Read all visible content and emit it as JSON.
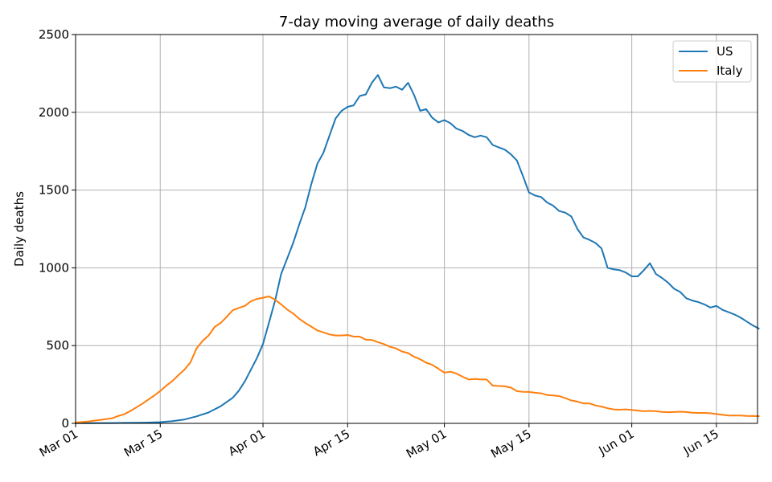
{
  "chart_data": {
    "type": "line",
    "title": "7-day moving average of daily deaths",
    "xlabel": "",
    "ylabel": "Daily deaths",
    "xlim": [
      "2020-03-01",
      "2020-06-20"
    ],
    "ylim": [
      0,
      2500
    ],
    "grid": true,
    "legend_position": "top-right",
    "x_ticks": [
      {
        "date": "2020-03-01",
        "label": "Mar 01"
      },
      {
        "date": "2020-03-15",
        "label": "Mar 15"
      },
      {
        "date": "2020-04-01",
        "label": "Apr 01"
      },
      {
        "date": "2020-04-15",
        "label": "Apr 15"
      },
      {
        "date": "2020-05-01",
        "label": "May 01"
      },
      {
        "date": "2020-05-15",
        "label": "May 15"
      },
      {
        "date": "2020-06-01",
        "label": "Jun 01"
      },
      {
        "date": "2020-06-15",
        "label": "Jun 15"
      }
    ],
    "y_ticks": [
      0,
      500,
      1000,
      1500,
      2000,
      2500
    ],
    "series": [
      {
        "name": "US",
        "color": "#1f77b4",
        "points": [
          [
            "2020-03-01",
            1
          ],
          [
            "2020-03-03",
            1
          ],
          [
            "2020-03-05",
            2
          ],
          [
            "2020-03-07",
            2
          ],
          [
            "2020-03-09",
            3
          ],
          [
            "2020-03-11",
            4
          ],
          [
            "2020-03-13",
            5
          ],
          [
            "2020-03-15",
            8
          ],
          [
            "2020-03-17",
            14
          ],
          [
            "2020-03-19",
            25
          ],
          [
            "2020-03-21",
            45
          ],
          [
            "2020-03-23",
            70
          ],
          [
            "2020-03-25",
            110
          ],
          [
            "2020-03-27",
            165
          ],
          [
            "2020-03-28",
            210
          ],
          [
            "2020-03-29",
            270
          ],
          [
            "2020-03-30",
            345
          ],
          [
            "2020-03-31",
            420
          ],
          [
            "2020-04-01",
            510
          ],
          [
            "2020-04-02",
            650
          ],
          [
            "2020-04-03",
            790
          ],
          [
            "2020-04-04",
            960
          ],
          [
            "2020-04-05",
            1060
          ],
          [
            "2020-04-06",
            1160
          ],
          [
            "2020-04-07",
            1280
          ],
          [
            "2020-04-08",
            1390
          ],
          [
            "2020-04-09",
            1540
          ],
          [
            "2020-04-10",
            1670
          ],
          [
            "2020-04-11",
            1740
          ],
          [
            "2020-04-12",
            1850
          ],
          [
            "2020-04-13",
            1960
          ],
          [
            "2020-04-14",
            2010
          ],
          [
            "2020-04-15",
            2035
          ],
          [
            "2020-04-16",
            2045
          ],
          [
            "2020-04-17",
            2105
          ],
          [
            "2020-04-18",
            2115
          ],
          [
            "2020-04-19",
            2190
          ],
          [
            "2020-04-20",
            2240
          ],
          [
            "2020-04-21",
            2160
          ],
          [
            "2020-04-22",
            2155
          ],
          [
            "2020-04-23",
            2165
          ],
          [
            "2020-04-24",
            2145
          ],
          [
            "2020-04-25",
            2190
          ],
          [
            "2020-04-26",
            2110
          ],
          [
            "2020-04-27",
            2010
          ],
          [
            "2020-04-28",
            2020
          ],
          [
            "2020-04-29",
            1965
          ],
          [
            "2020-04-30",
            1935
          ],
          [
            "2020-05-01",
            1950
          ],
          [
            "2020-05-02",
            1930
          ],
          [
            "2020-05-03",
            1895
          ],
          [
            "2020-05-04",
            1880
          ],
          [
            "2020-05-05",
            1855
          ],
          [
            "2020-05-06",
            1840
          ],
          [
            "2020-05-07",
            1850
          ],
          [
            "2020-05-08",
            1840
          ],
          [
            "2020-05-09",
            1790
          ],
          [
            "2020-05-10",
            1775
          ],
          [
            "2020-05-11",
            1760
          ],
          [
            "2020-05-12",
            1730
          ],
          [
            "2020-05-13",
            1690
          ],
          [
            "2020-05-14",
            1590
          ],
          [
            "2020-05-15",
            1485
          ],
          [
            "2020-05-16",
            1465
          ],
          [
            "2020-05-17",
            1455
          ],
          [
            "2020-05-18",
            1420
          ],
          [
            "2020-05-19",
            1400
          ],
          [
            "2020-05-20",
            1365
          ],
          [
            "2020-05-21",
            1355
          ],
          [
            "2020-05-22",
            1330
          ],
          [
            "2020-05-23",
            1250
          ],
          [
            "2020-05-24",
            1195
          ],
          [
            "2020-05-25",
            1180
          ],
          [
            "2020-05-26",
            1160
          ],
          [
            "2020-05-27",
            1125
          ],
          [
            "2020-05-28",
            1000
          ],
          [
            "2020-05-29",
            990
          ],
          [
            "2020-05-30",
            985
          ],
          [
            "2020-05-31",
            970
          ],
          [
            "2020-06-01",
            945
          ],
          [
            "2020-06-02",
            945
          ],
          [
            "2020-06-03",
            985
          ],
          [
            "2020-06-04",
            1030
          ],
          [
            "2020-06-05",
            960
          ],
          [
            "2020-06-06",
            935
          ],
          [
            "2020-06-07",
            905
          ],
          [
            "2020-06-08",
            865
          ],
          [
            "2020-06-09",
            845
          ],
          [
            "2020-06-10",
            805
          ],
          [
            "2020-06-11",
            790
          ],
          [
            "2020-06-12",
            780
          ],
          [
            "2020-06-13",
            765
          ],
          [
            "2020-06-14",
            745
          ],
          [
            "2020-06-15",
            755
          ],
          [
            "2020-06-16",
            730
          ],
          [
            "2020-06-17",
            715
          ],
          [
            "2020-06-18",
            700
          ],
          [
            "2020-06-19",
            680
          ],
          [
            "2020-06-20",
            655
          ],
          [
            "2020-06-21",
            630
          ],
          [
            "2020-06-22",
            610
          ]
        ]
      },
      {
        "name": "Italy",
        "color": "#ff7f0e",
        "points": [
          [
            "2020-03-01",
            5
          ],
          [
            "2020-03-03",
            12
          ],
          [
            "2020-03-05",
            22
          ],
          [
            "2020-03-07",
            32
          ],
          [
            "2020-03-08",
            47
          ],
          [
            "2020-03-09",
            58
          ],
          [
            "2020-03-10",
            78
          ],
          [
            "2020-03-11",
            102
          ],
          [
            "2020-03-12",
            125
          ],
          [
            "2020-03-13",
            152
          ],
          [
            "2020-03-14",
            178
          ],
          [
            "2020-03-15",
            208
          ],
          [
            "2020-03-16",
            242
          ],
          [
            "2020-03-17",
            272
          ],
          [
            "2020-03-18",
            310
          ],
          [
            "2020-03-19",
            345
          ],
          [
            "2020-03-20",
            392
          ],
          [
            "2020-03-21",
            482
          ],
          [
            "2020-03-22",
            530
          ],
          [
            "2020-03-23",
            565
          ],
          [
            "2020-03-24",
            620
          ],
          [
            "2020-03-25",
            645
          ],
          [
            "2020-03-26",
            685
          ],
          [
            "2020-03-27",
            728
          ],
          [
            "2020-03-28",
            742
          ],
          [
            "2020-03-29",
            755
          ],
          [
            "2020-03-30",
            785
          ],
          [
            "2020-03-31",
            800
          ],
          [
            "2020-04-01",
            808
          ],
          [
            "2020-04-02",
            816
          ],
          [
            "2020-04-03",
            795
          ],
          [
            "2020-04-04",
            765
          ],
          [
            "2020-04-05",
            732
          ],
          [
            "2020-04-06",
            706
          ],
          [
            "2020-04-07",
            672
          ],
          [
            "2020-04-08",
            645
          ],
          [
            "2020-04-09",
            622
          ],
          [
            "2020-04-10",
            597
          ],
          [
            "2020-04-11",
            585
          ],
          [
            "2020-04-12",
            572
          ],
          [
            "2020-04-13",
            565
          ],
          [
            "2020-04-14",
            565
          ],
          [
            "2020-04-15",
            568
          ],
          [
            "2020-04-16",
            558
          ],
          [
            "2020-04-17",
            558
          ],
          [
            "2020-04-18",
            538
          ],
          [
            "2020-04-19",
            536
          ],
          [
            "2020-04-20",
            522
          ],
          [
            "2020-04-21",
            510
          ],
          [
            "2020-04-22",
            492
          ],
          [
            "2020-04-23",
            482
          ],
          [
            "2020-04-24",
            462
          ],
          [
            "2020-04-25",
            452
          ],
          [
            "2020-04-26",
            428
          ],
          [
            "2020-04-27",
            412
          ],
          [
            "2020-04-28",
            390
          ],
          [
            "2020-04-29",
            376
          ],
          [
            "2020-04-30",
            352
          ],
          [
            "2020-05-01",
            326
          ],
          [
            "2020-05-02",
            332
          ],
          [
            "2020-05-03",
            320
          ],
          [
            "2020-05-04",
            300
          ],
          [
            "2020-05-05",
            282
          ],
          [
            "2020-05-06",
            285
          ],
          [
            "2020-05-07",
            283
          ],
          [
            "2020-05-08",
            282
          ],
          [
            "2020-05-09",
            243
          ],
          [
            "2020-05-10",
            240
          ],
          [
            "2020-05-11",
            238
          ],
          [
            "2020-05-12",
            230
          ],
          [
            "2020-05-13",
            207
          ],
          [
            "2020-05-14",
            203
          ],
          [
            "2020-05-15",
            202
          ],
          [
            "2020-05-16",
            197
          ],
          [
            "2020-05-17",
            193
          ],
          [
            "2020-05-18",
            182
          ],
          [
            "2020-05-19",
            180
          ],
          [
            "2020-05-20",
            175
          ],
          [
            "2020-05-21",
            162
          ],
          [
            "2020-05-22",
            147
          ],
          [
            "2020-05-23",
            140
          ],
          [
            "2020-05-24",
            128
          ],
          [
            "2020-05-25",
            128
          ],
          [
            "2020-05-26",
            115
          ],
          [
            "2020-05-27",
            108
          ],
          [
            "2020-05-28",
            97
          ],
          [
            "2020-05-29",
            90
          ],
          [
            "2020-05-30",
            88
          ],
          [
            "2020-05-31",
            90
          ],
          [
            "2020-06-01",
            87
          ],
          [
            "2020-06-02",
            82
          ],
          [
            "2020-06-03",
            78
          ],
          [
            "2020-06-04",
            80
          ],
          [
            "2020-06-05",
            78
          ],
          [
            "2020-06-06",
            74
          ],
          [
            "2020-06-07",
            72
          ],
          [
            "2020-06-08",
            73
          ],
          [
            "2020-06-09",
            75
          ],
          [
            "2020-06-10",
            73
          ],
          [
            "2020-06-11",
            68
          ],
          [
            "2020-06-12",
            67
          ],
          [
            "2020-06-13",
            67
          ],
          [
            "2020-06-14",
            65
          ],
          [
            "2020-06-15",
            60
          ],
          [
            "2020-06-16",
            55
          ],
          [
            "2020-06-17",
            50
          ],
          [
            "2020-06-18",
            50
          ],
          [
            "2020-06-19",
            50
          ],
          [
            "2020-06-20",
            48
          ],
          [
            "2020-06-21",
            47
          ],
          [
            "2020-06-22",
            46
          ]
        ]
      }
    ]
  }
}
